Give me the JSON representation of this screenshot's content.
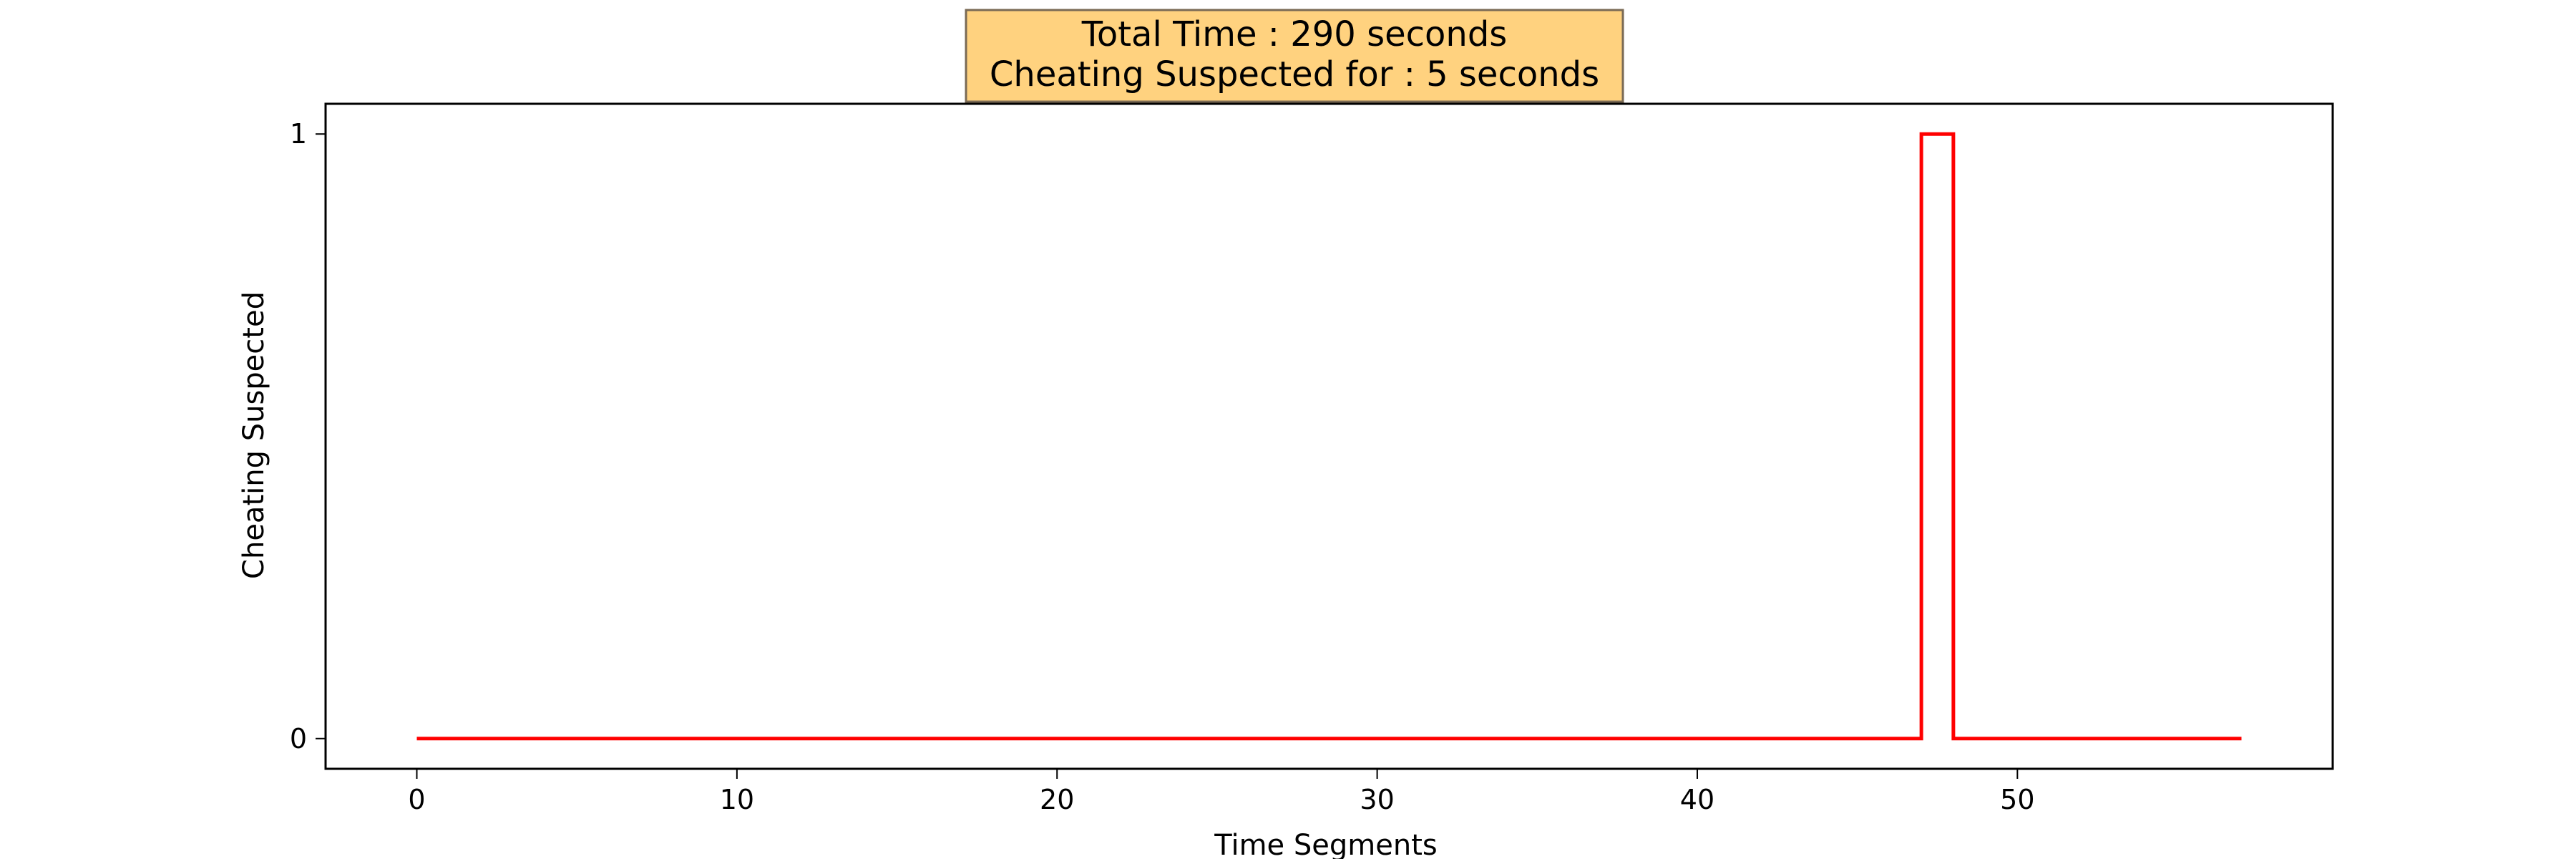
{
  "chart_data": {
    "type": "line",
    "title_lines": [
      "Total Time : 290 seconds",
      "Cheating Suspected for : 5 seconds"
    ],
    "title_box_color": "#ffd27f",
    "xlabel": "Time Segments",
    "ylabel": "Cheating Suspected",
    "xlim": [
      -2.85,
      59.85
    ],
    "ylim": [
      -0.05,
      1.05
    ],
    "x_ticks": [
      0,
      10,
      20,
      30,
      40,
      50
    ],
    "y_ticks": [
      0,
      1
    ],
    "grid": false,
    "line_style": "steps-post",
    "series": [
      {
        "color": "#ff0000",
        "x": [
          0,
          1,
          2,
          3,
          4,
          5,
          6,
          7,
          8,
          9,
          10,
          11,
          12,
          13,
          14,
          15,
          16,
          17,
          18,
          19,
          20,
          21,
          22,
          23,
          24,
          25,
          26,
          27,
          28,
          29,
          30,
          31,
          32,
          33,
          34,
          35,
          36,
          37,
          38,
          39,
          40,
          41,
          42,
          43,
          44,
          45,
          46,
          47,
          48,
          49,
          50,
          51,
          52,
          53,
          54,
          55,
          56,
          57
        ],
        "values": [
          0,
          0,
          0,
          0,
          0,
          0,
          0,
          0,
          0,
          0,
          0,
          0,
          0,
          0,
          0,
          0,
          0,
          0,
          0,
          0,
          0,
          0,
          0,
          0,
          0,
          0,
          0,
          0,
          0,
          0,
          0,
          0,
          0,
          0,
          0,
          0,
          0,
          0,
          0,
          0,
          0,
          0,
          0,
          0,
          0,
          0,
          0,
          1,
          0,
          0,
          0,
          0,
          0,
          0,
          0,
          0,
          0,
          0
        ]
      }
    ]
  }
}
